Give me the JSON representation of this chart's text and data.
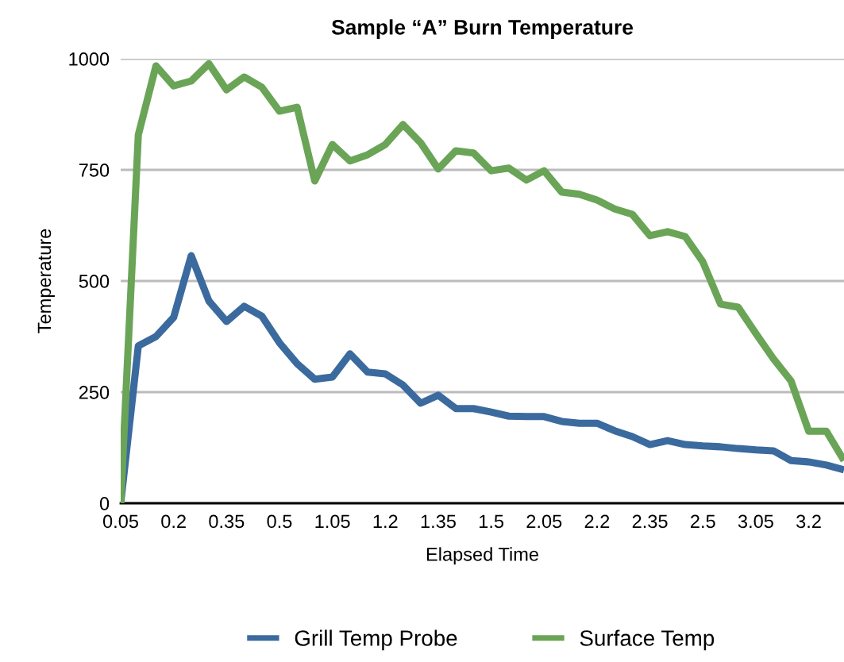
{
  "chart_data": {
    "type": "line",
    "title": "Sample “A” Burn Temperature",
    "xlabel": "Elapsed Time",
    "ylabel": "Temperature",
    "categories": [
      "0.05",
      null,
      null,
      "0.2",
      null,
      null,
      "0.35",
      null,
      null,
      "0.5",
      null,
      null,
      "1.05",
      null,
      null,
      "1.2",
      null,
      null,
      "1.35",
      null,
      null,
      "1.5",
      null,
      null,
      "2.05",
      null,
      null,
      "2.2",
      null,
      null,
      "2.35",
      null,
      null,
      "2.5",
      null,
      null,
      "3.05",
      null,
      null,
      "3.2",
      null,
      null
    ],
    "series": [
      {
        "name": "Grill Temp Probe",
        "color": "#3b6a9e",
        "values": [
          0,
          354,
          375,
          418,
          557,
          455,
          409,
          443,
          421,
          361,
          314,
          279,
          284,
          336,
          295,
          291,
          266,
          225,
          243,
          213,
          213,
          205,
          196,
          195,
          195,
          184,
          180,
          180,
          163,
          150,
          132,
          141,
          132,
          129,
          127,
          123,
          120,
          118,
          96,
          93,
          86,
          75
        ]
      },
      {
        "name": "Surface Temp",
        "color": "#6aa456",
        "values": [
          0,
          829,
          984,
          939,
          950,
          989,
          930,
          959,
          936,
          882,
          891,
          725,
          807,
          770,
          784,
          807,
          852,
          811,
          752,
          793,
          788,
          748,
          754,
          727,
          748,
          700,
          695,
          682,
          662,
          650,
          602,
          611,
          600,
          543,
          448,
          441,
          382,
          325,
          275,
          162,
          162,
          96
        ]
      }
    ],
    "ylim": [
      0,
      1000
    ],
    "yticks": [
      0,
      250,
      500,
      750,
      1000
    ],
    "grid": "y",
    "legend": "bottom",
    "marker": "none",
    "line_style": "solid"
  }
}
